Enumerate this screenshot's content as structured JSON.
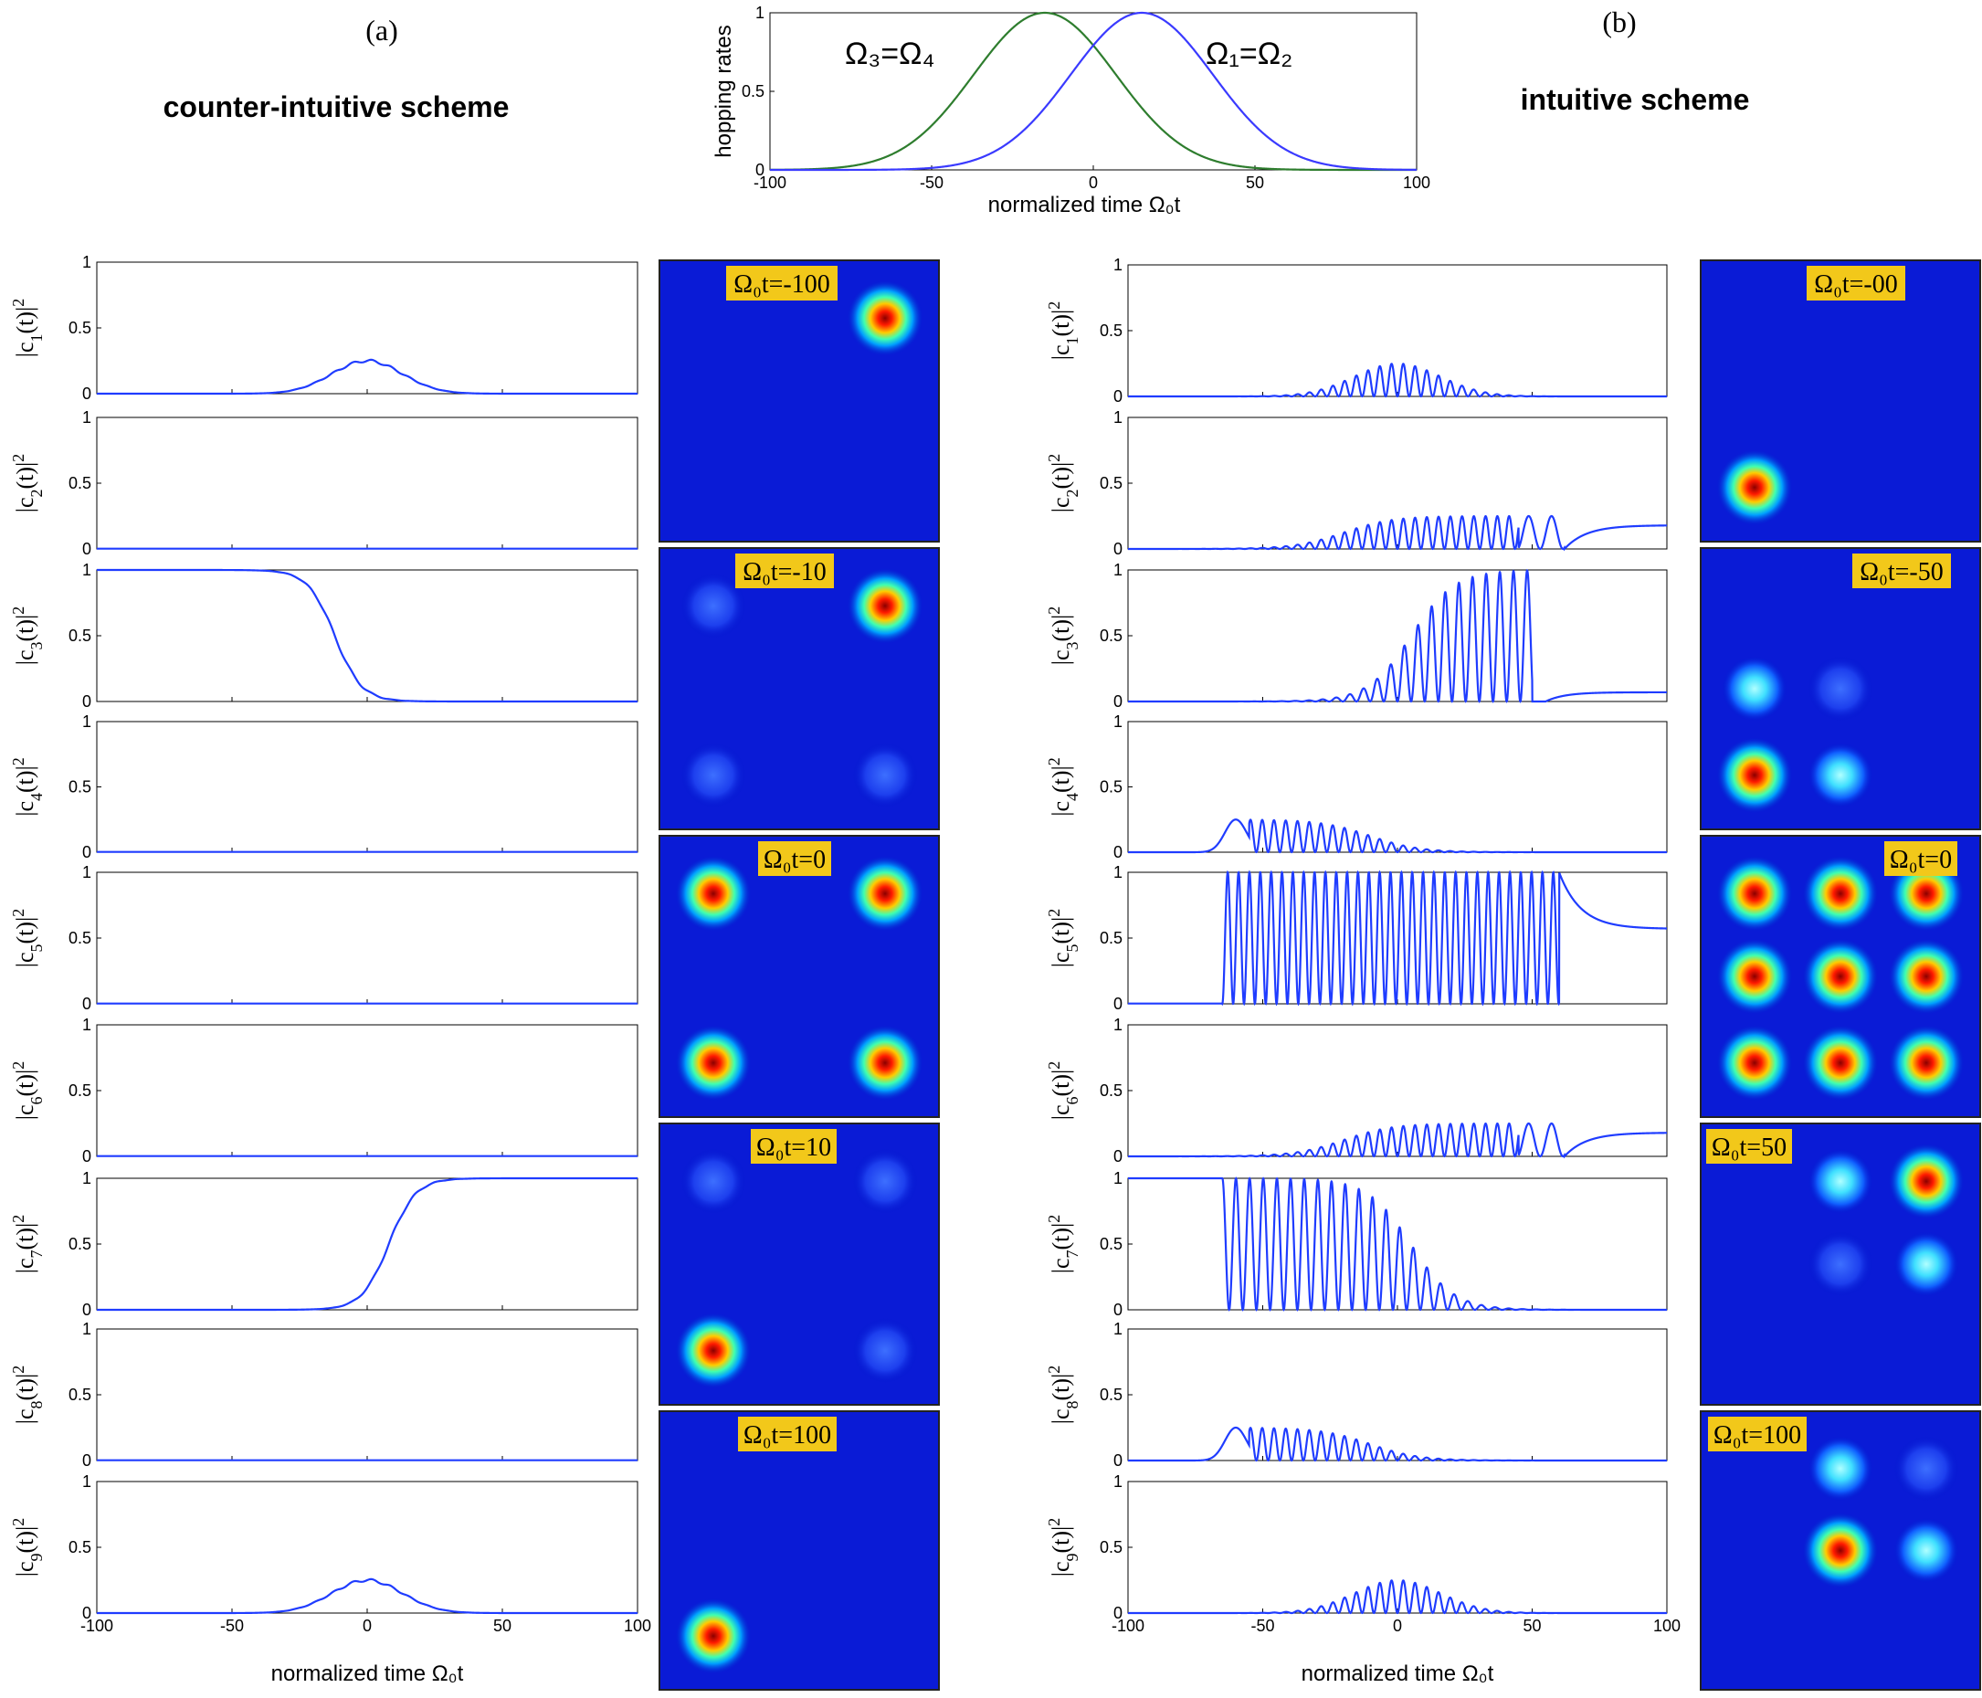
{
  "labels": {
    "panel_a": "(a)",
    "panel_b": "(b)",
    "scheme_a": "counter-intuitive scheme",
    "scheme_b": "intuitive scheme",
    "top_ylabel": "hopping rates",
    "xlabel": "normalized time Ω₀t",
    "omega34": "Ω₃=Ω₄",
    "omega12": "Ω₁=Ω₂"
  },
  "chart_data": [
    {
      "id": "top",
      "type": "line",
      "title": "",
      "xlabel": "normalized time Ω₀t",
      "ylabel": "hopping rates",
      "xlim": [
        -100,
        100
      ],
      "ylim": [
        0,
        1
      ],
      "xticks": [
        -100,
        -50,
        0,
        50,
        100
      ],
      "yticks": [
        0,
        0.5,
        1
      ],
      "ytick_labels": [
        "0",
        "0.5",
        "1"
      ],
      "series": [
        {
          "name": "Ω₃=Ω₄",
          "color": "#2e7d2e",
          "shape": "gaussian",
          "center": -15,
          "width": 22
        },
        {
          "name": "Ω₁=Ω₂",
          "color": "#3a3aff",
          "shape": "gaussian",
          "center": 15,
          "width": 22
        }
      ]
    },
    {
      "id": "a",
      "type": "line",
      "title": "counter-intuitive scheme",
      "xlabel": "normalized time Ω₀t",
      "xlim": [
        -100,
        100
      ],
      "ylim": [
        0,
        1
      ],
      "xticks": [
        -100,
        -50,
        0,
        50,
        100
      ],
      "yticks": [
        0,
        0.5,
        1
      ],
      "ytick_labels": [
        "0",
        "0.5",
        "1"
      ],
      "series": [
        {
          "name": "|c1(t)|²",
          "sub": "1",
          "kind": "bump",
          "amp": 0.25
        },
        {
          "name": "|c2(t)|²",
          "sub": "2",
          "kind": "zero"
        },
        {
          "name": "|c3(t)|²",
          "sub": "3",
          "kind": "fall"
        },
        {
          "name": "|c4(t)|²",
          "sub": "4",
          "kind": "zero"
        },
        {
          "name": "|c5(t)|²",
          "sub": "5",
          "kind": "zero"
        },
        {
          "name": "|c6(t)|²",
          "sub": "6",
          "kind": "zero"
        },
        {
          "name": "|c7(t)|²",
          "sub": "7",
          "kind": "rise"
        },
        {
          "name": "|c8(t)|²",
          "sub": "8",
          "kind": "zero"
        },
        {
          "name": "|c9(t)|²",
          "sub": "9",
          "kind": "bump",
          "amp": 0.25
        }
      ]
    },
    {
      "id": "b",
      "type": "line",
      "title": "intuitive scheme",
      "xlabel": "normalized time Ω₀t",
      "xlim": [
        -100,
        100
      ],
      "ylim": [
        0,
        1
      ],
      "xticks": [
        -100,
        -50,
        0,
        50,
        100
      ],
      "yticks": [
        0,
        0.5,
        1
      ],
      "ytick_labels": [
        "0",
        "0.5",
        "1"
      ],
      "series": [
        {
          "name": "|c1(t)|²",
          "sub": "1",
          "kind": "osc_bump",
          "amp": 0.25
        },
        {
          "name": "|c2(t)|²",
          "sub": "2",
          "kind": "osc_right",
          "amp": 0.25,
          "final": 0.18
        },
        {
          "name": "|c3(t)|²",
          "sub": "3",
          "kind": "osc_full_right",
          "final": 0.07
        },
        {
          "name": "|c4(t)|²",
          "sub": "4",
          "kind": "osc_left",
          "amp": 0.25
        },
        {
          "name": "|c5(t)|²",
          "sub": "5",
          "kind": "osc_full",
          "final": 0.57
        },
        {
          "name": "|c6(t)|²",
          "sub": "6",
          "kind": "osc_right",
          "amp": 0.25,
          "final": 0.18
        },
        {
          "name": "|c7(t)|²",
          "sub": "7",
          "kind": "osc_full_left"
        },
        {
          "name": "|c8(t)|²",
          "sub": "8",
          "kind": "osc_left",
          "amp": 0.25
        },
        {
          "name": "|c9(t)|²",
          "sub": "9",
          "kind": "osc_bump",
          "amp": 0.25
        }
      ]
    },
    {
      "id": "snapshots_a",
      "type": "heatmap",
      "grid": "3x3 lattice sites, color = population",
      "frames": [
        {
          "label": "Ω₀t=-100",
          "spots": [
            {
              "site": [
                2,
                0
              ],
              "p": 1.0
            }
          ]
        },
        {
          "label": "Ω₀t=-10",
          "spots": [
            {
              "site": [
                2,
                0
              ],
              "p": 0.9
            },
            {
              "site": [
                0,
                0
              ],
              "p": 0.15
            },
            {
              "site": [
                0,
                2
              ],
              "p": 0.08
            },
            {
              "site": [
                2,
                2
              ],
              "p": 0.15
            }
          ]
        },
        {
          "label": "Ω₀t=0",
          "spots": [
            {
              "site": [
                0,
                0
              ],
              "p": 0.9
            },
            {
              "site": [
                2,
                0
              ],
              "p": 0.9
            },
            {
              "site": [
                0,
                2
              ],
              "p": 0.9
            },
            {
              "site": [
                2,
                2
              ],
              "p": 0.9
            }
          ]
        },
        {
          "label": "Ω₀t=10",
          "spots": [
            {
              "site": [
                0,
                2
              ],
              "p": 0.9
            },
            {
              "site": [
                0,
                0
              ],
              "p": 0.15
            },
            {
              "site": [
                2,
                0
              ],
              "p": 0.08
            },
            {
              "site": [
                2,
                2
              ],
              "p": 0.15
            }
          ]
        },
        {
          "label": "Ω₀t=100",
          "spots": [
            {
              "site": [
                0,
                2
              ],
              "p": 1.0
            }
          ]
        }
      ]
    },
    {
      "id": "snapshots_b",
      "type": "heatmap",
      "grid": "3x3 lattice sites, color = population",
      "frames": [
        {
          "label": "Ω₀t=-00",
          "spots": [
            {
              "site": [
                0,
                2
              ],
              "p": 1.0
            }
          ]
        },
        {
          "label": "Ω₀t=-50",
          "spots": [
            {
              "site": [
                0,
                2
              ],
              "p": 0.95
            },
            {
              "site": [
                0,
                1
              ],
              "p": 0.35
            },
            {
              "site": [
                1,
                2
              ],
              "p": 0.35
            },
            {
              "site": [
                1,
                1
              ],
              "p": 0.12
            }
          ]
        },
        {
          "label": "Ω₀t=0",
          "spots": [
            {
              "site": [
                0,
                0
              ],
              "p": 0.8
            },
            {
              "site": [
                1,
                0
              ],
              "p": 0.8
            },
            {
              "site": [
                2,
                0
              ],
              "p": 0.8
            },
            {
              "site": [
                0,
                1
              ],
              "p": 0.85
            },
            {
              "site": [
                1,
                1
              ],
              "p": 0.95
            },
            {
              "site": [
                2,
                1
              ],
              "p": 0.85
            },
            {
              "site": [
                0,
                2
              ],
              "p": 0.8
            },
            {
              "site": [
                1,
                2
              ],
              "p": 0.85
            },
            {
              "site": [
                2,
                2
              ],
              "p": 0.8
            }
          ]
        },
        {
          "label": "Ω₀t=50",
          "spots": [
            {
              "site": [
                2,
                0
              ],
              "p": 0.95
            },
            {
              "site": [
                1,
                0
              ],
              "p": 0.35
            },
            {
              "site": [
                2,
                1
              ],
              "p": 0.35
            },
            {
              "site": [
                1,
                1
              ],
              "p": 0.12
            }
          ]
        },
        {
          "label": "Ω₀t=100",
          "spots": [
            {
              "site": [
                1,
                1
              ],
              "p": 1.0
            },
            {
              "site": [
                1,
                0
              ],
              "p": 0.3
            },
            {
              "site": [
                2,
                1
              ],
              "p": 0.3
            },
            {
              "site": [
                2,
                0
              ],
              "p": 0.12
            }
          ]
        }
      ]
    }
  ]
}
